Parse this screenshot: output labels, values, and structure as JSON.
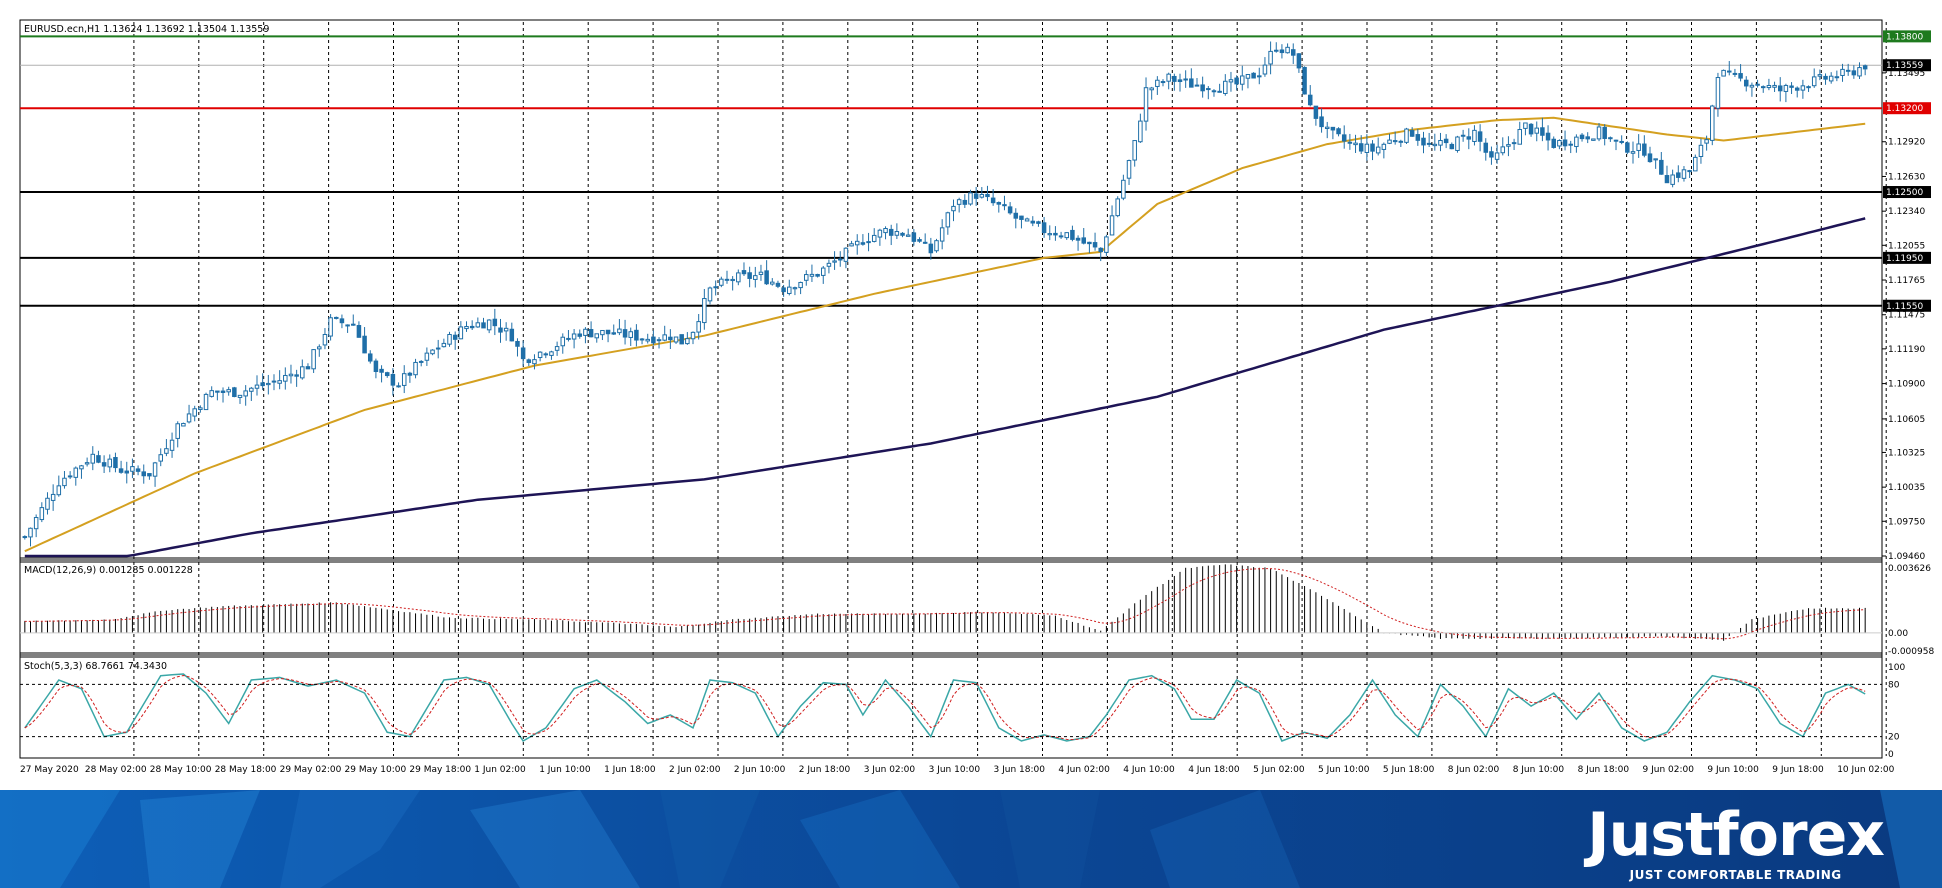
{
  "header": {
    "symbol_info": "EURUSD.ecn,H1  1.13624 1.13692 1.13504 1.13559",
    "macd_info": "MACD(12,26,9) 0.001285 0.001228",
    "stoch_info": "Stoch(5,3,3) 68.7661 74.3430"
  },
  "colors": {
    "bull_candle": "#ffffff",
    "bear_candle": "#1f6fa8",
    "candle_outline": "#1f6fa8",
    "ma_fast": "#d4a020",
    "ma_slow": "#1e1456",
    "resistance": "#1e7a1e",
    "support_red": "#e00000",
    "level_black": "#000000",
    "stoch_main": "#3aa7a7",
    "stoch_signal": "#d02020",
    "banner_bg": "#0c3d88",
    "banner_accent": "#1a7cd0"
  },
  "price_axis_labels": [
    "1.13495",
    "1.12920",
    "1.12630",
    "1.12340",
    "1.12055",
    "1.11765",
    "1.11475",
    "1.11190",
    "1.10900",
    "1.10605",
    "1.10325",
    "1.10035",
    "1.09750",
    "1.09460"
  ],
  "macd_axis_labels": [
    "0.003626",
    "0.00",
    "-0.000958"
  ],
  "stoch_axis_labels": [
    "100",
    "80",
    "20",
    "0"
  ],
  "time_labels": [
    "27 May 2020",
    "28 May 02:00",
    "28 May 10:00",
    "28 May 18:00",
    "29 May 02:00",
    "29 May 10:00",
    "29 May 18:00",
    "1 Jun 02:00",
    "1 Jun 10:00",
    "1 Jun 18:00",
    "2 Jun 02:00",
    "2 Jun 10:00",
    "2 Jun 18:00",
    "3 Jun 02:00",
    "3 Jun 10:00",
    "3 Jun 18:00",
    "4 Jun 02:00",
    "4 Jun 10:00",
    "4 Jun 18:00",
    "5 Jun 02:00",
    "5 Jun 10:00",
    "5 Jun 18:00",
    "8 Jun 02:00",
    "8 Jun 10:00",
    "8 Jun 18:00",
    "9 Jun 02:00",
    "9 Jun 10:00",
    "9 Jun 18:00",
    "10 Jun 02:00"
  ],
  "levels": [
    {
      "label": "1.13800",
      "price": 1.138,
      "color": "#1e7a1e"
    },
    {
      "label": "1.13559",
      "price": 1.13559,
      "color": "#000000",
      "kind": "bid"
    },
    {
      "label": "1.13200",
      "price": 1.132,
      "color": "#e00000"
    },
    {
      "label": "1.12500",
      "price": 1.125,
      "color": "#000000"
    },
    {
      "label": "1.11950",
      "price": 1.1195,
      "color": "#000000"
    },
    {
      "label": "1.11550",
      "price": 1.1155,
      "color": "#000000"
    }
  ],
  "chart_data": {
    "type": "candlestick",
    "symbol": "EURUSD.ecn",
    "timeframe": "H1",
    "ylim": [
      1.0946,
      1.1392
    ],
    "x_range": [
      "27 May 2020",
      "10 Jun 2020"
    ],
    "close_anchors": [
      [
        0,
        1.0962
      ],
      [
        6,
        1.1008
      ],
      [
        12,
        1.103
      ],
      [
        17,
        1.1018
      ],
      [
        22,
        1.1015
      ],
      [
        27,
        1.1055
      ],
      [
        33,
        1.1083
      ],
      [
        38,
        1.1083
      ],
      [
        45,
        1.1093
      ],
      [
        50,
        1.1105
      ],
      [
        54,
        1.1142
      ],
      [
        58,
        1.114
      ],
      [
        62,
        1.1098
      ],
      [
        66,
        1.109
      ],
      [
        72,
        1.1117
      ],
      [
        78,
        1.1138
      ],
      [
        82,
        1.1142
      ],
      [
        86,
        1.113
      ],
      [
        88,
        1.111
      ],
      [
        93,
        1.112
      ],
      [
        98,
        1.1133
      ],
      [
        104,
        1.1132
      ],
      [
        110,
        1.1128
      ],
      [
        114,
        1.113
      ],
      [
        116,
        1.1125
      ],
      [
        118,
        1.1135
      ],
      [
        121,
        1.1168
      ],
      [
        125,
        1.1178
      ],
      [
        130,
        1.118
      ],
      [
        134,
        1.117
      ],
      [
        140,
        1.1182
      ],
      [
        144,
        1.1195
      ],
      [
        148,
        1.121
      ],
      [
        152,
        1.1218
      ],
      [
        156,
        1.1215
      ],
      [
        160,
        1.12
      ],
      [
        164,
        1.124
      ],
      [
        168,
        1.1248
      ],
      [
        172,
        1.1238
      ],
      [
        176,
        1.1225
      ],
      [
        180,
        1.1218
      ],
      [
        184,
        1.1215
      ],
      [
        188,
        1.1205
      ],
      [
        190,
        1.12
      ],
      [
        193,
        1.1245
      ],
      [
        196,
        1.129
      ],
      [
        198,
        1.1335
      ],
      [
        202,
        1.1345
      ],
      [
        206,
        1.134
      ],
      [
        210,
        1.1338
      ],
      [
        214,
        1.134
      ],
      [
        218,
        1.135
      ],
      [
        221,
        1.1372
      ],
      [
        224,
        1.1365
      ],
      [
        227,
        1.132
      ],
      [
        230,
        1.13
      ],
      [
        234,
        1.129
      ],
      [
        238,
        1.1285
      ],
      [
        242,
        1.1295
      ],
      [
        245,
        1.13
      ],
      [
        248,
        1.1288
      ],
      [
        252,
        1.129
      ],
      [
        256,
        1.13
      ],
      [
        259,
        1.1275
      ],
      [
        262,
        1.129
      ],
      [
        265,
        1.1305
      ],
      [
        270,
        1.129
      ],
      [
        274,
        1.1295
      ],
      [
        278,
        1.13
      ],
      [
        282,
        1.1288
      ],
      [
        286,
        1.1285
      ],
      [
        290,
        1.1262
      ],
      [
        294,
        1.1268
      ],
      [
        297,
        1.1295
      ],
      [
        299,
        1.135
      ],
      [
        302,
        1.1345
      ],
      [
        306,
        1.134
      ],
      [
        310,
        1.1335
      ],
      [
        314,
        1.134
      ],
      [
        318,
        1.1345
      ],
      [
        322,
        1.1349
      ],
      [
        325,
        1.1356
      ]
    ],
    "ma_fast_anchors": [
      [
        0,
        1.095
      ],
      [
        30,
        1.1015
      ],
      [
        60,
        1.1068
      ],
      [
        90,
        1.1105
      ],
      [
        120,
        1.113
      ],
      [
        150,
        1.1165
      ],
      [
        180,
        1.1195
      ],
      [
        190,
        1.12
      ],
      [
        200,
        1.124
      ],
      [
        215,
        1.127
      ],
      [
        230,
        1.129
      ],
      [
        245,
        1.1302
      ],
      [
        260,
        1.131
      ],
      [
        270,
        1.1312
      ],
      [
        290,
        1.1298
      ],
      [
        300,
        1.1293
      ],
      [
        325,
        1.1307
      ]
    ],
    "ma_slow_anchors": [
      [
        0,
        1.093
      ],
      [
        40,
        1.0965
      ],
      [
        80,
        1.0993
      ],
      [
        120,
        1.101
      ],
      [
        160,
        1.104
      ],
      [
        200,
        1.1079
      ],
      [
        240,
        1.1135
      ],
      [
        280,
        1.1175
      ],
      [
        310,
        1.121
      ],
      [
        325,
        1.1228
      ]
    ],
    "macd": {
      "ylim": [
        -0.000958,
        0.003626
      ],
      "anchors": [
        [
          0,
          0.0006
        ],
        [
          15,
          0.0007
        ],
        [
          25,
          0.0012
        ],
        [
          35,
          0.0014
        ],
        [
          45,
          0.0015
        ],
        [
          55,
          0.0016
        ],
        [
          65,
          0.0012
        ],
        [
          75,
          0.0008
        ],
        [
          90,
          0.0007
        ],
        [
          105,
          0.0005
        ],
        [
          115,
          0.0003
        ],
        [
          125,
          0.0007
        ],
        [
          140,
          0.001
        ],
        [
          155,
          0.001
        ],
        [
          170,
          0.0011
        ],
        [
          182,
          0.0009
        ],
        [
          190,
          0.0001
        ],
        [
          198,
          0.002
        ],
        [
          205,
          0.0034
        ],
        [
          212,
          0.0036
        ],
        [
          220,
          0.0034
        ],
        [
          230,
          0.0018
        ],
        [
          240,
          0.0
        ],
        [
          250,
          -0.0003
        ],
        [
          270,
          -0.0003
        ],
        [
          290,
          -0.0002
        ],
        [
          300,
          -0.0004
        ],
        [
          305,
          0.0007
        ],
        [
          315,
          0.0013
        ],
        [
          325,
          0.0013
        ]
      ]
    },
    "stochastic": {
      "ylim": [
        0,
        100
      ],
      "levels": [
        20,
        80
      ],
      "anchors": [
        [
          0,
          30
        ],
        [
          6,
          85
        ],
        [
          10,
          75
        ],
        [
          14,
          20
        ],
        [
          18,
          25
        ],
        [
          24,
          90
        ],
        [
          28,
          92
        ],
        [
          32,
          70
        ],
        [
          36,
          35
        ],
        [
          40,
          85
        ],
        [
          45,
          88
        ],
        [
          50,
          78
        ],
        [
          55,
          85
        ],
        [
          60,
          70
        ],
        [
          64,
          25
        ],
        [
          68,
          20
        ],
        [
          74,
          85
        ],
        [
          78,
          88
        ],
        [
          82,
          80
        ],
        [
          86,
          35
        ],
        [
          88,
          15
        ],
        [
          92,
          30
        ],
        [
          97,
          75
        ],
        [
          101,
          85
        ],
        [
          106,
          60
        ],
        [
          110,
          35
        ],
        [
          114,
          45
        ],
        [
          118,
          30
        ],
        [
          121,
          85
        ],
        [
          125,
          82
        ],
        [
          129,
          70
        ],
        [
          133,
          20
        ],
        [
          137,
          55
        ],
        [
          141,
          82
        ],
        [
          145,
          80
        ],
        [
          148,
          45
        ],
        [
          152,
          85
        ],
        [
          156,
          55
        ],
        [
          160,
          20
        ],
        [
          164,
          85
        ],
        [
          168,
          82
        ],
        [
          172,
          30
        ],
        [
          176,
          15
        ],
        [
          180,
          22
        ],
        [
          184,
          15
        ],
        [
          188,
          20
        ],
        [
          191,
          45
        ],
        [
          195,
          85
        ],
        [
          199,
          90
        ],
        [
          203,
          75
        ],
        [
          206,
          40
        ],
        [
          210,
          40
        ],
        [
          214,
          85
        ],
        [
          218,
          70
        ],
        [
          222,
          15
        ],
        [
          226,
          25
        ],
        [
          230,
          18
        ],
        [
          234,
          45
        ],
        [
          238,
          85
        ],
        [
          242,
          45
        ],
        [
          246,
          20
        ],
        [
          250,
          80
        ],
        [
          254,
          55
        ],
        [
          258,
          20
        ],
        [
          262,
          75
        ],
        [
          266,
          55
        ],
        [
          270,
          70
        ],
        [
          274,
          40
        ],
        [
          278,
          70
        ],
        [
          282,
          30
        ],
        [
          286,
          15
        ],
        [
          290,
          25
        ],
        [
          294,
          60
        ],
        [
          298,
          90
        ],
        [
          302,
          85
        ],
        [
          306,
          75
        ],
        [
          310,
          35
        ],
        [
          314,
          20
        ],
        [
          318,
          70
        ],
        [
          322,
          80
        ],
        [
          325,
          69
        ]
      ]
    }
  }
}
